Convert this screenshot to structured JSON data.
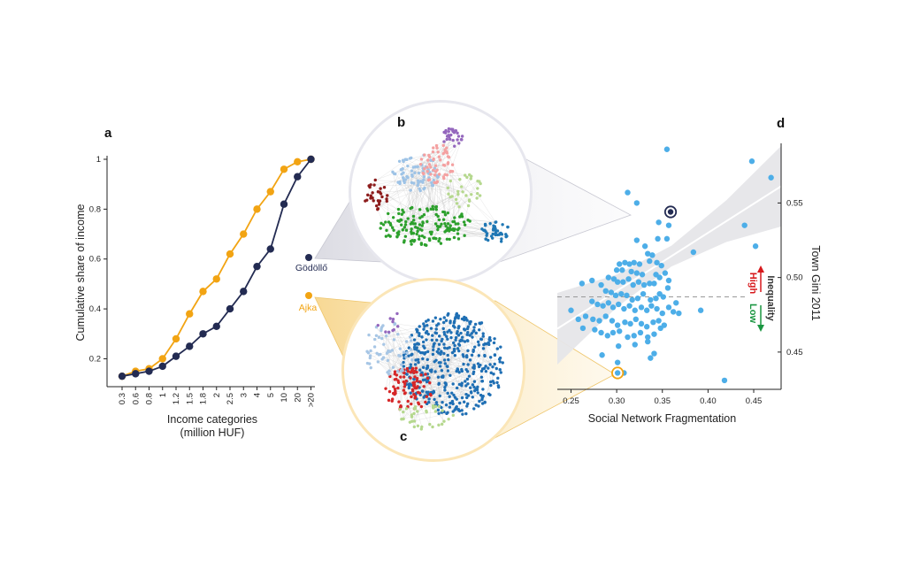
{
  "chart_data": [
    {
      "panel": "a",
      "type": "line",
      "title": "",
      "xlabel": "Income categories",
      "xlabel2": "(million HUF)",
      "ylabel": "Cumulative share of income",
      "categories": [
        "0.3",
        "0.6",
        "0.8",
        "1",
        "1.2",
        "1.5",
        "1.8",
        "2",
        "2.5",
        "3",
        "4",
        "5",
        "10",
        "20",
        ">20"
      ],
      "yticks": [
        "0.2",
        "0.4",
        "0.6",
        "0.8",
        "1"
      ],
      "ylim": [
        0.12,
        1.0
      ],
      "series": [
        {
          "name": "Ajka",
          "color": "#f2a413",
          "values": [
            0.13,
            0.15,
            0.16,
            0.2,
            0.28,
            0.38,
            0.47,
            0.52,
            0.62,
            0.7,
            0.8,
            0.87,
            0.96,
            0.99,
            1.0
          ]
        },
        {
          "name": "Gödöllő",
          "color": "#232b52",
          "values": [
            0.13,
            0.14,
            0.15,
            0.17,
            0.21,
            0.25,
            0.3,
            0.33,
            0.4,
            0.47,
            0.57,
            0.64,
            0.82,
            0.93,
            1.0
          ]
        }
      ]
    },
    {
      "panel": "d",
      "type": "scatter",
      "xlabel": "Social Network Fragmentation",
      "ylabel": "Town Gini 2011",
      "xticks": [
        "0.25",
        "0.30",
        "0.35",
        "0.40",
        "0.45"
      ],
      "yticks": [
        "0.45",
        "0.50",
        "0.55"
      ],
      "xlim": [
        0.235,
        0.48
      ],
      "ylim": [
        0.425,
        0.59
      ],
      "mean_line_y": 0.487,
      "fit": {
        "intercept": 0.374,
        "slope": 0.39
      },
      "highlight": [
        {
          "name": "Gödöllő",
          "x": 0.359,
          "y": 0.544,
          "color": "#232b52"
        },
        {
          "name": "Ajka",
          "x": 0.301,
          "y": 0.436,
          "color": "#f2a413"
        }
      ],
      "points": [
        [
          0.355,
          0.586
        ],
        [
          0.312,
          0.557
        ],
        [
          0.448,
          0.578
        ],
        [
          0.469,
          0.567
        ],
        [
          0.322,
          0.55
        ],
        [
          0.357,
          0.535
        ],
        [
          0.346,
          0.537
        ],
        [
          0.355,
          0.526
        ],
        [
          0.345,
          0.526
        ],
        [
          0.44,
          0.535
        ],
        [
          0.452,
          0.521
        ],
        [
          0.384,
          0.517
        ],
        [
          0.322,
          0.525
        ],
        [
          0.331,
          0.521
        ],
        [
          0.334,
          0.516
        ],
        [
          0.339,
          0.515
        ],
        [
          0.303,
          0.509
        ],
        [
          0.309,
          0.51
        ],
        [
          0.314,
          0.509
        ],
        [
          0.319,
          0.51
        ],
        [
          0.325,
          0.509
        ],
        [
          0.336,
          0.511
        ],
        [
          0.344,
          0.51
        ],
        [
          0.349,
          0.508
        ],
        [
          0.3,
          0.505
        ],
        [
          0.306,
          0.505
        ],
        [
          0.316,
          0.504
        ],
        [
          0.322,
          0.503
        ],
        [
          0.328,
          0.502
        ],
        [
          0.343,
          0.502
        ],
        [
          0.347,
          0.5
        ],
        [
          0.353,
          0.503
        ],
        [
          0.357,
          0.498
        ],
        [
          0.291,
          0.5
        ],
        [
          0.297,
          0.499
        ],
        [
          0.301,
          0.497
        ],
        [
          0.307,
          0.497
        ],
        [
          0.313,
          0.499
        ],
        [
          0.318,
          0.495
        ],
        [
          0.324,
          0.497
        ],
        [
          0.33,
          0.495
        ],
        [
          0.336,
          0.496
        ],
        [
          0.341,
          0.496
        ],
        [
          0.356,
          0.493
        ],
        [
          0.283,
          0.495
        ],
        [
          0.273,
          0.498
        ],
        [
          0.262,
          0.496
        ],
        [
          0.288,
          0.491
        ],
        [
          0.294,
          0.49
        ],
        [
          0.299,
          0.488
        ],
        [
          0.305,
          0.489
        ],
        [
          0.311,
          0.488
        ],
        [
          0.317,
          0.485
        ],
        [
          0.323,
          0.486
        ],
        [
          0.329,
          0.489
        ],
        [
          0.337,
          0.485
        ],
        [
          0.343,
          0.486
        ],
        [
          0.347,
          0.489
        ],
        [
          0.351,
          0.487
        ],
        [
          0.365,
          0.483
        ],
        [
          0.273,
          0.484
        ],
        [
          0.279,
          0.482
        ],
        [
          0.285,
          0.481
        ],
        [
          0.291,
          0.483
        ],
        [
          0.296,
          0.48
        ],
        [
          0.302,
          0.482
        ],
        [
          0.308,
          0.479
        ],
        [
          0.314,
          0.481
        ],
        [
          0.32,
          0.478
        ],
        [
          0.327,
          0.48
        ],
        [
          0.333,
          0.478
        ],
        [
          0.338,
          0.481
        ],
        [
          0.344,
          0.479
        ],
        [
          0.35,
          0.476
        ],
        [
          0.357,
          0.48
        ],
        [
          0.362,
          0.477
        ],
        [
          0.25,
          0.478
        ],
        [
          0.258,
          0.472
        ],
        [
          0.266,
          0.474
        ],
        [
          0.274,
          0.472
        ],
        [
          0.281,
          0.471
        ],
        [
          0.288,
          0.474
        ],
        [
          0.295,
          0.471
        ],
        [
          0.301,
          0.468
        ],
        [
          0.309,
          0.47
        ],
        [
          0.315,
          0.469
        ],
        [
          0.321,
          0.472
        ],
        [
          0.327,
          0.469
        ],
        [
          0.333,
          0.467
        ],
        [
          0.34,
          0.47
        ],
        [
          0.346,
          0.471
        ],
        [
          0.352,
          0.468
        ],
        [
          0.368,
          0.476
        ],
        [
          0.263,
          0.466
        ],
        [
          0.276,
          0.465
        ],
        [
          0.283,
          0.463
        ],
        [
          0.29,
          0.461
        ],
        [
          0.296,
          0.463
        ],
        [
          0.303,
          0.464
        ],
        [
          0.312,
          0.46
        ],
        [
          0.319,
          0.461
        ],
        [
          0.326,
          0.463
        ],
        [
          0.334,
          0.46
        ],
        [
          0.341,
          0.462
        ],
        [
          0.348,
          0.466
        ],
        [
          0.302,
          0.454
        ],
        [
          0.32,
          0.455
        ],
        [
          0.334,
          0.457
        ],
        [
          0.341,
          0.449
        ],
        [
          0.337,
          0.446
        ],
        [
          0.284,
          0.448
        ],
        [
          0.301,
          0.443
        ],
        [
          0.308,
          0.436
        ],
        [
          0.418,
          0.431
        ],
        [
          0.392,
          0.478
        ]
      ]
    }
  ],
  "towns": {
    "godollo": "Gödöllő",
    "ajka": "Ajka"
  },
  "inequality": {
    "label": "Inequality",
    "high": "High",
    "low": "Low",
    "high_color": "#d7191c",
    "low_color": "#1a9641"
  },
  "panel_letters": {
    "a": "a",
    "b": "b",
    "c": "c",
    "d": "d"
  },
  "network_colors": {
    "b": [
      "#9ec3e6",
      "#f4a1a1",
      "#2ca02c",
      "#1f77b4",
      "#9467bd",
      "#8c1c1c",
      "#b5d88e",
      "#17becf"
    ],
    "c": [
      "#1f6fb4",
      "#d62728",
      "#a7c6e5",
      "#b5d88e",
      "#9467bd",
      "#e377c2",
      "#bcbd22",
      "#17becf"
    ]
  }
}
